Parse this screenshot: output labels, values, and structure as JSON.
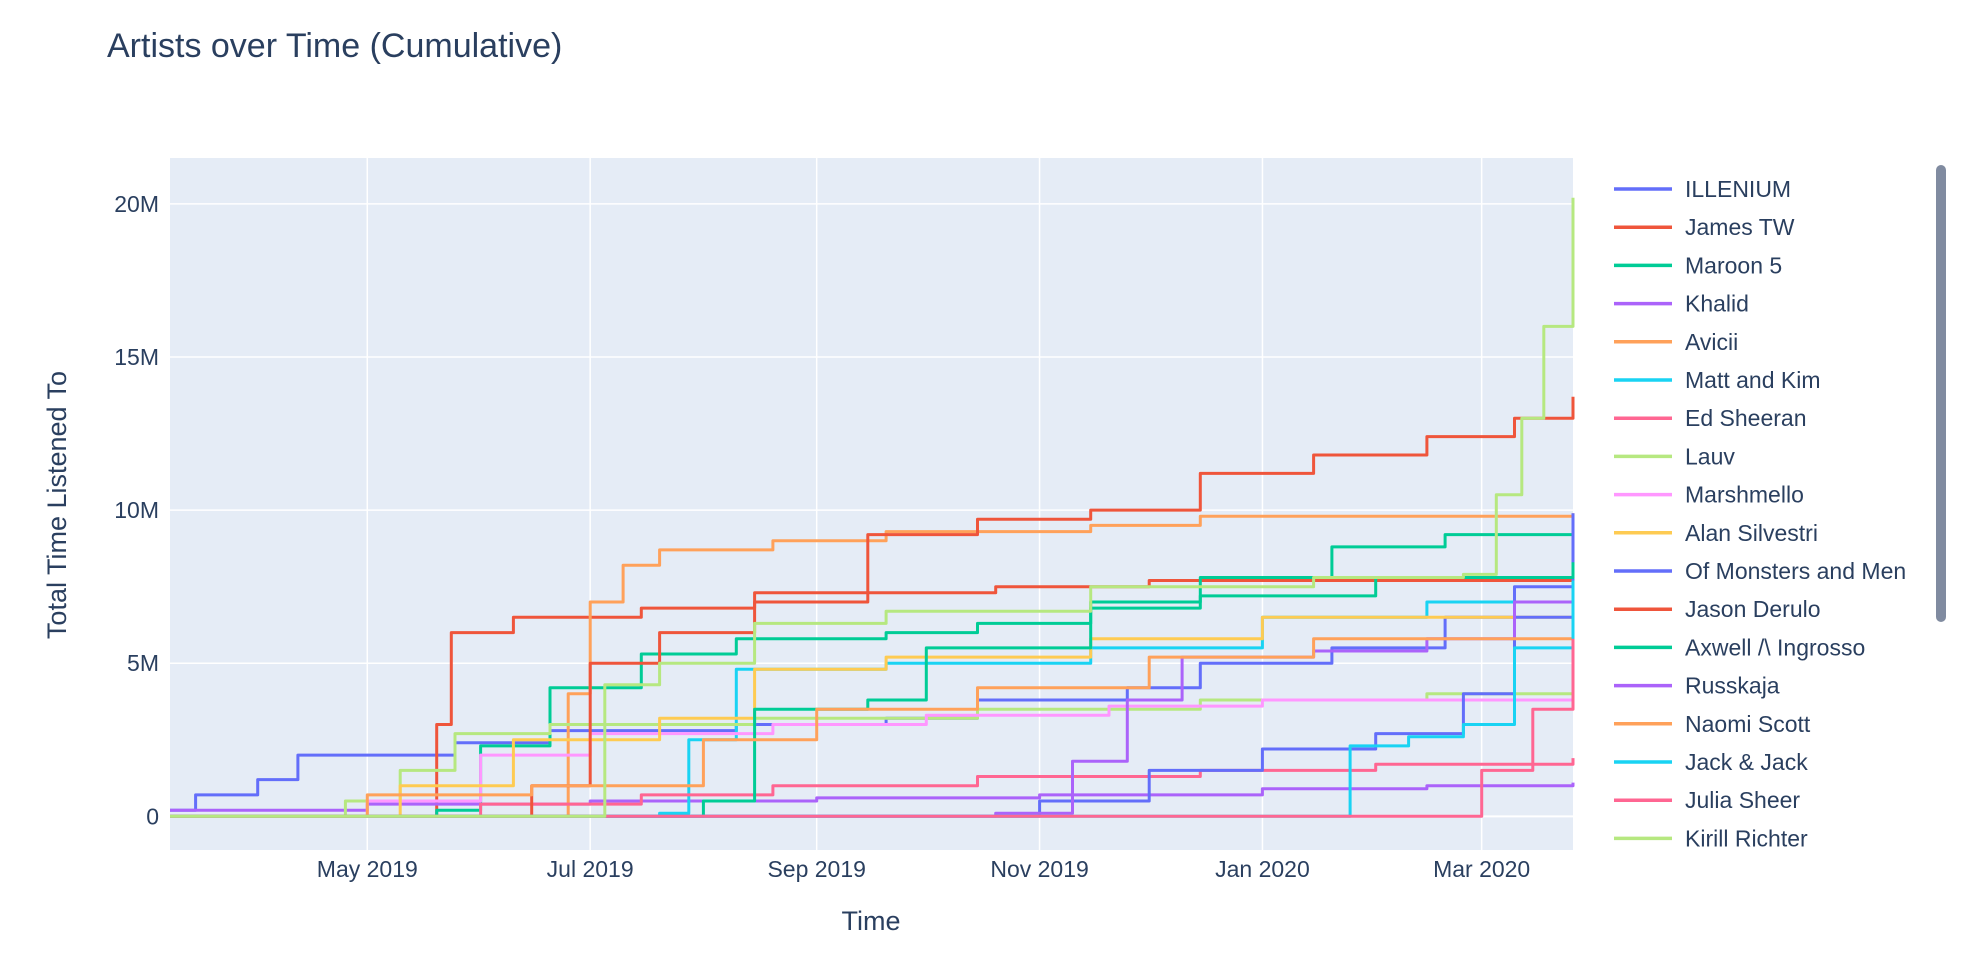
{
  "chart_data": {
    "type": "line",
    "title": "Artists over Time (Cumulative)",
    "xlabel": "Time",
    "ylabel": "Total Time Listened To",
    "x_axis_type": "date",
    "xlim": [
      "2019-03-08",
      "2020-03-26"
    ],
    "ylim": [
      -1100000,
      21500000
    ],
    "x_ticks": [
      {
        "label": "May 2019",
        "date": "2019-05-01"
      },
      {
        "label": "Jul 2019",
        "date": "2019-07-01"
      },
      {
        "label": "Sep 2019",
        "date": "2019-09-01"
      },
      {
        "label": "Nov 2019",
        "date": "2019-11-01"
      },
      {
        "label": "Jan 2020",
        "date": "2020-01-01"
      },
      {
        "label": "Mar 2020",
        "date": "2020-03-01"
      }
    ],
    "y_ticks": [
      {
        "label": "0",
        "value": 0
      },
      {
        "label": "5M",
        "value": 5000000
      },
      {
        "label": "10M",
        "value": 10000000
      },
      {
        "label": "15M",
        "value": 15000000
      },
      {
        "label": "20M",
        "value": 20000000
      }
    ],
    "grid": true,
    "legend_position": "right",
    "legend_scrollable": true,
    "series": [
      {
        "name": "ILLENIUM",
        "color": "#636efa",
        "points": [
          [
            "2019-03-08",
            200000
          ],
          [
            "2019-03-15",
            700000
          ],
          [
            "2019-04-01",
            1200000
          ],
          [
            "2019-04-12",
            2000000
          ],
          [
            "2019-05-10",
            2000000
          ],
          [
            "2019-05-25",
            2400000
          ],
          [
            "2019-06-20",
            2800000
          ],
          [
            "2019-08-10",
            3000000
          ],
          [
            "2019-09-20",
            3200000
          ],
          [
            "2019-10-15",
            3800000
          ],
          [
            "2019-11-25",
            4200000
          ],
          [
            "2019-12-15",
            5000000
          ],
          [
            "2020-01-20",
            5500000
          ],
          [
            "2020-02-20",
            6500000
          ],
          [
            "2020-03-10",
            7500000
          ],
          [
            "2020-03-26",
            8200000
          ]
        ]
      },
      {
        "name": "James TW",
        "color": "#EF553B",
        "points": [
          [
            "2019-03-08",
            0
          ],
          [
            "2019-05-15",
            0
          ],
          [
            "2019-05-20",
            3000000
          ],
          [
            "2019-05-24",
            6000000
          ],
          [
            "2019-06-10",
            6500000
          ],
          [
            "2019-07-15",
            6800000
          ],
          [
            "2019-08-15",
            7000000
          ],
          [
            "2019-09-15",
            7300000
          ],
          [
            "2019-10-20",
            7500000
          ],
          [
            "2019-12-01",
            7700000
          ],
          [
            "2020-01-15",
            7700000
          ],
          [
            "2020-03-26",
            7800000
          ]
        ]
      },
      {
        "name": "Maroon 5",
        "color": "#00cc96",
        "points": [
          [
            "2019-03-08",
            0
          ],
          [
            "2019-05-20",
            200000
          ],
          [
            "2019-06-01",
            2300000
          ],
          [
            "2019-06-20",
            4200000
          ],
          [
            "2019-07-15",
            5300000
          ],
          [
            "2019-08-10",
            5800000
          ],
          [
            "2019-09-20",
            6000000
          ],
          [
            "2019-10-15",
            6300000
          ],
          [
            "2019-11-15",
            7000000
          ],
          [
            "2019-12-15",
            7800000
          ],
          [
            "2020-01-20",
            8800000
          ],
          [
            "2020-02-20",
            9200000
          ],
          [
            "2020-03-26",
            9300000
          ]
        ]
      },
      {
        "name": "Khalid",
        "color": "#ab63fa",
        "points": [
          [
            "2019-03-08",
            200000
          ],
          [
            "2019-05-01",
            400000
          ],
          [
            "2019-07-01",
            500000
          ],
          [
            "2019-09-01",
            600000
          ],
          [
            "2019-11-01",
            700000
          ],
          [
            "2020-01-01",
            900000
          ],
          [
            "2020-02-15",
            1000000
          ],
          [
            "2020-03-26",
            1100000
          ]
        ]
      },
      {
        "name": "Avicii",
        "color": "#FFA15A",
        "points": [
          [
            "2019-03-08",
            0
          ],
          [
            "2019-06-10",
            0
          ],
          [
            "2019-06-25",
            4000000
          ],
          [
            "2019-07-01",
            7000000
          ],
          [
            "2019-07-10",
            8200000
          ],
          [
            "2019-07-20",
            8700000
          ],
          [
            "2019-08-20",
            9000000
          ],
          [
            "2019-09-20",
            9300000
          ],
          [
            "2019-11-15",
            9500000
          ],
          [
            "2019-12-15",
            9800000
          ],
          [
            "2020-03-26",
            9900000
          ]
        ]
      },
      {
        "name": "Matt and Kim",
        "color": "#19d3f3",
        "points": [
          [
            "2019-03-08",
            0
          ],
          [
            "2019-07-20",
            100000
          ],
          [
            "2019-07-28",
            2500000
          ],
          [
            "2019-08-10",
            4800000
          ],
          [
            "2019-09-20",
            5000000
          ],
          [
            "2019-11-15",
            5500000
          ],
          [
            "2020-01-01",
            6500000
          ],
          [
            "2020-02-15",
            7000000
          ],
          [
            "2020-03-26",
            7400000
          ]
        ]
      },
      {
        "name": "Ed Sheeran",
        "color": "#FF6692",
        "points": [
          [
            "2019-03-08",
            0
          ],
          [
            "2019-06-01",
            400000
          ],
          [
            "2019-07-15",
            700000
          ],
          [
            "2019-08-20",
            1000000
          ],
          [
            "2019-10-15",
            1300000
          ],
          [
            "2019-12-15",
            1500000
          ],
          [
            "2020-02-01",
            1700000
          ],
          [
            "2020-03-26",
            1900000
          ]
        ]
      },
      {
        "name": "Lauv",
        "color": "#B6E880",
        "points": [
          [
            "2019-03-08",
            0
          ],
          [
            "2019-04-25",
            500000
          ],
          [
            "2019-05-10",
            1500000
          ],
          [
            "2019-05-25",
            2700000
          ],
          [
            "2019-06-20",
            3000000
          ],
          [
            "2019-08-15",
            3200000
          ],
          [
            "2019-10-15",
            3500000
          ],
          [
            "2019-12-15",
            3800000
          ],
          [
            "2020-02-15",
            4000000
          ],
          [
            "2020-03-26",
            4200000
          ]
        ]
      },
      {
        "name": "Marshmello",
        "color": "#FF97FF",
        "points": [
          [
            "2019-03-08",
            0
          ],
          [
            "2019-05-01",
            500000
          ],
          [
            "2019-06-01",
            2000000
          ],
          [
            "2019-07-01",
            2700000
          ],
          [
            "2019-08-20",
            3000000
          ],
          [
            "2019-10-01",
            3300000
          ],
          [
            "2019-11-20",
            3600000
          ],
          [
            "2020-01-01",
            3800000
          ],
          [
            "2020-03-26",
            4000000
          ]
        ]
      },
      {
        "name": "Alan Silvestri",
        "color": "#FECB52",
        "points": [
          [
            "2019-03-08",
            0
          ],
          [
            "2019-05-10",
            1000000
          ],
          [
            "2019-06-10",
            2500000
          ],
          [
            "2019-07-20",
            3200000
          ],
          [
            "2019-08-15",
            4800000
          ],
          [
            "2019-09-20",
            5200000
          ],
          [
            "2019-11-15",
            5800000
          ],
          [
            "2020-01-01",
            6500000
          ],
          [
            "2020-03-26",
            7000000
          ]
        ]
      },
      {
        "name": "Of Monsters and Men",
        "color": "#636efa",
        "points": [
          [
            "2019-03-08",
            0
          ],
          [
            "2019-10-15",
            0
          ],
          [
            "2019-11-01",
            500000
          ],
          [
            "2019-12-01",
            1500000
          ],
          [
            "2020-01-01",
            2200000
          ],
          [
            "2020-02-01",
            2700000
          ],
          [
            "2020-02-25",
            4000000
          ],
          [
            "2020-03-10",
            6500000
          ],
          [
            "2020-03-26",
            9900000
          ]
        ]
      },
      {
        "name": "Jason Derulo",
        "color": "#EF553B",
        "points": [
          [
            "2019-03-08",
            0
          ],
          [
            "2019-06-15",
            1000000
          ],
          [
            "2019-07-01",
            5000000
          ],
          [
            "2019-07-20",
            6000000
          ],
          [
            "2019-08-15",
            7300000
          ],
          [
            "2019-09-15",
            9200000
          ],
          [
            "2019-10-15",
            9700000
          ],
          [
            "2019-11-15",
            10000000
          ],
          [
            "2019-12-15",
            11200000
          ],
          [
            "2020-01-15",
            11800000
          ],
          [
            "2020-02-15",
            12400000
          ],
          [
            "2020-03-10",
            13000000
          ],
          [
            "2020-03-26",
            13700000
          ]
        ]
      },
      {
        "name": "Axwell /\\ Ingrosso",
        "color": "#00cc96",
        "points": [
          [
            "2019-03-08",
            0
          ],
          [
            "2019-08-01",
            500000
          ],
          [
            "2019-08-15",
            3500000
          ],
          [
            "2019-09-15",
            3800000
          ],
          [
            "2019-10-01",
            5500000
          ],
          [
            "2019-11-15",
            6800000
          ],
          [
            "2019-12-15",
            7200000
          ],
          [
            "2020-02-01",
            7800000
          ],
          [
            "2020-03-26",
            8300000
          ]
        ]
      },
      {
        "name": "Russkaja",
        "color": "#ab63fa",
        "points": [
          [
            "2019-03-08",
            0
          ],
          [
            "2019-10-20",
            100000
          ],
          [
            "2019-11-10",
            1800000
          ],
          [
            "2019-11-25",
            3800000
          ],
          [
            "2019-12-10",
            5200000
          ],
          [
            "2020-01-15",
            5400000
          ],
          [
            "2020-02-15",
            5800000
          ],
          [
            "2020-03-10",
            7000000
          ],
          [
            "2020-03-26",
            7500000
          ]
        ]
      },
      {
        "name": "Naomi Scott",
        "color": "#FFA15A",
        "points": [
          [
            "2019-03-08",
            0
          ],
          [
            "2019-05-01",
            700000
          ],
          [
            "2019-06-15",
            1000000
          ],
          [
            "2019-08-01",
            2500000
          ],
          [
            "2019-09-01",
            3500000
          ],
          [
            "2019-10-15",
            4200000
          ],
          [
            "2019-12-01",
            5200000
          ],
          [
            "2020-01-15",
            5800000
          ],
          [
            "2020-03-26",
            7400000
          ]
        ]
      },
      {
        "name": "Jack & Jack",
        "color": "#19d3f3",
        "points": [
          [
            "2019-03-08",
            0
          ],
          [
            "2020-01-20",
            0
          ],
          [
            "2020-01-25",
            2300000
          ],
          [
            "2020-02-10",
            2600000
          ],
          [
            "2020-02-25",
            3000000
          ],
          [
            "2020-03-10",
            5500000
          ],
          [
            "2020-03-26",
            7700000
          ]
        ]
      },
      {
        "name": "Julia Sheer",
        "color": "#FF6692",
        "points": [
          [
            "2019-03-08",
            0
          ],
          [
            "2020-02-20",
            0
          ],
          [
            "2020-03-01",
            1500000
          ],
          [
            "2020-03-15",
            3500000
          ],
          [
            "2020-03-26",
            5800000
          ]
        ]
      },
      {
        "name": "Kirill Richter",
        "color": "#B6E880",
        "points": [
          [
            "2019-03-08",
            0
          ],
          [
            "2019-06-25",
            0
          ],
          [
            "2019-07-05",
            4300000
          ],
          [
            "2019-07-20",
            5000000
          ],
          [
            "2019-08-15",
            6300000
          ],
          [
            "2019-09-20",
            6700000
          ],
          [
            "2019-11-15",
            7500000
          ],
          [
            "2020-01-15",
            7800000
          ],
          [
            "2020-02-25",
            7900000
          ],
          [
            "2020-03-05",
            10500000
          ],
          [
            "2020-03-12",
            13000000
          ],
          [
            "2020-03-18",
            16000000
          ],
          [
            "2020-03-26",
            20200000
          ]
        ]
      }
    ]
  }
}
